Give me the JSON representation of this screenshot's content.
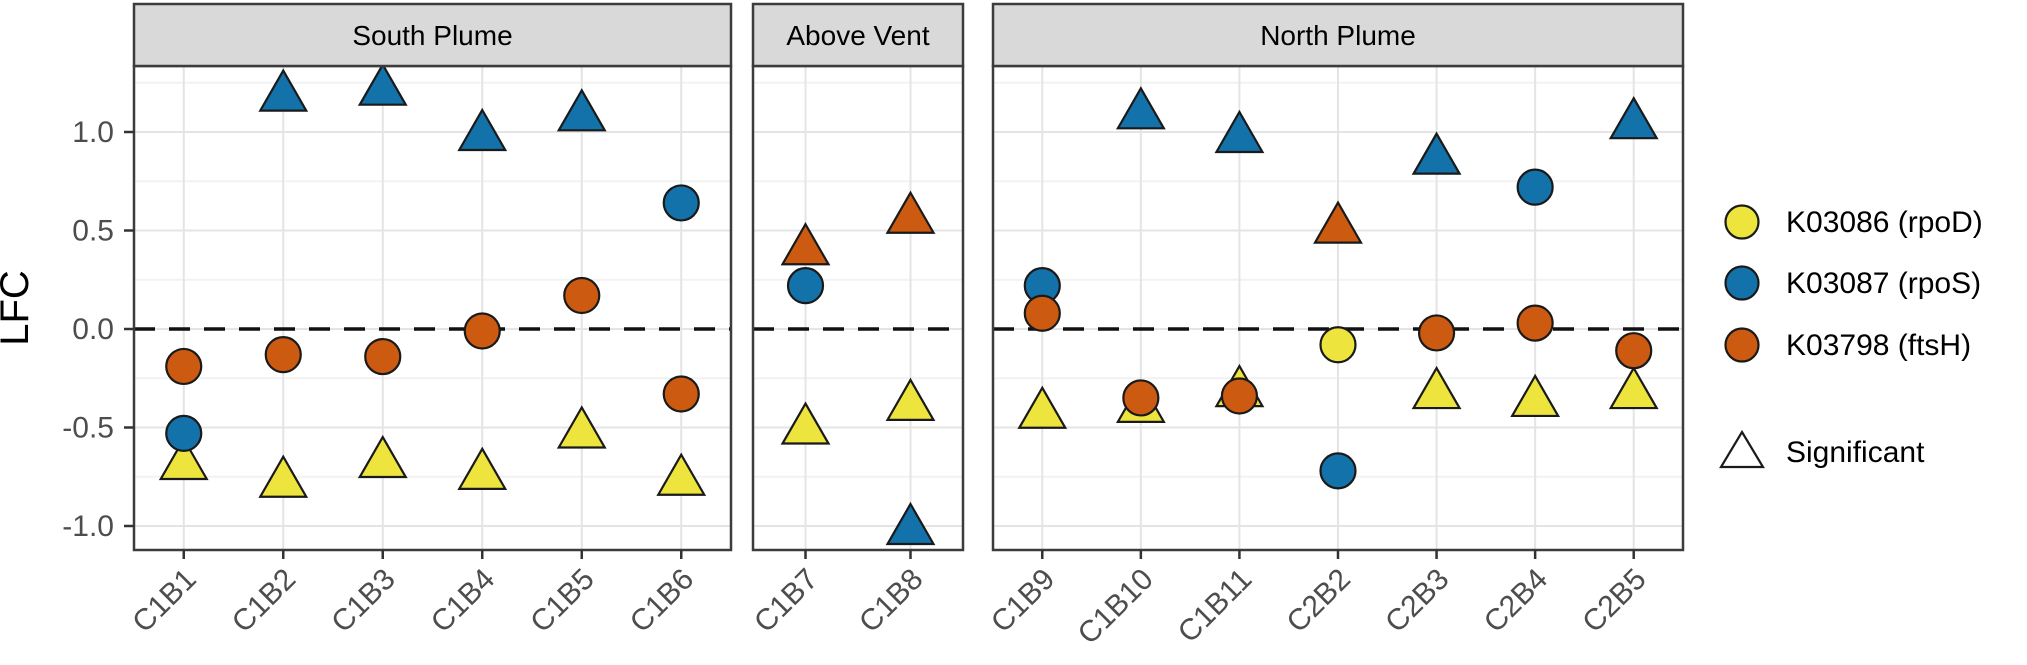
{
  "chart_data": {
    "type": "scatter",
    "title": "",
    "ylabel": "LFC",
    "yticks": [
      1.0,
      0.5,
      0.0,
      -0.5,
      -1.0
    ],
    "ytick_labels": [
      "1.0",
      "0.5",
      "0.0",
      "-0.5",
      "-1.0"
    ],
    "yminor": [
      1.25,
      0.75,
      0.25,
      -0.25,
      -0.75
    ],
    "ylim": [
      -1.12,
      1.33
    ],
    "grid": "on",
    "hline": {
      "value": 0.0,
      "style": "dashed",
      "color": "#111111"
    },
    "facets": [
      {
        "label": "South Plume",
        "categories": [
          "C1B1",
          "C1B2",
          "C1B3",
          "C1B4",
          "C1B5",
          "C1B6"
        ]
      },
      {
        "label": "Above Vent",
        "categories": [
          "C1B7",
          "C1B8"
        ]
      },
      {
        "label": "North Plume",
        "categories": [
          "C1B9",
          "C1B10",
          "C1B11",
          "C2B2",
          "C2B3",
          "C2B4",
          "C2B5"
        ]
      }
    ],
    "series": [
      {
        "key": "rpoD",
        "label": "K03086 (rpoD)",
        "color": "#EDE43D"
      },
      {
        "key": "rpoS",
        "label": "K03087 (rpoS)",
        "color": "#1272A9"
      },
      {
        "key": "ftsH",
        "label": "K03798 (ftsH)",
        "color": "#CC5A11"
      }
    ],
    "shape_legend": {
      "label": "Significant",
      "shape": "triangle"
    },
    "points": [
      {
        "facet": 0,
        "sample": "C1B1",
        "series": "rpoD",
        "lfc": -0.67,
        "significant": true
      },
      {
        "facet": 0,
        "sample": "C1B1",
        "series": "rpoS",
        "lfc": -0.53,
        "significant": false
      },
      {
        "facet": 0,
        "sample": "C1B1",
        "series": "ftsH",
        "lfc": -0.19,
        "significant": false
      },
      {
        "facet": 0,
        "sample": "C1B2",
        "series": "rpoD",
        "lfc": -0.76,
        "significant": true
      },
      {
        "facet": 0,
        "sample": "C1B2",
        "series": "rpoS",
        "lfc": 1.2,
        "significant": true
      },
      {
        "facet": 0,
        "sample": "C1B2",
        "series": "ftsH",
        "lfc": -0.13,
        "significant": false
      },
      {
        "facet": 0,
        "sample": "C1B3",
        "series": "rpoD",
        "lfc": -0.66,
        "significant": true
      },
      {
        "facet": 0,
        "sample": "C1B3",
        "series": "rpoS",
        "lfc": 1.23,
        "significant": true
      },
      {
        "facet": 0,
        "sample": "C1B3",
        "series": "ftsH",
        "lfc": -0.14,
        "significant": false
      },
      {
        "facet": 0,
        "sample": "C1B4",
        "series": "rpoD",
        "lfc": -0.72,
        "significant": true
      },
      {
        "facet": 0,
        "sample": "C1B4",
        "series": "rpoS",
        "lfc": 1.0,
        "significant": true
      },
      {
        "facet": 0,
        "sample": "C1B4",
        "series": "ftsH",
        "lfc": -0.01,
        "significant": false
      },
      {
        "facet": 0,
        "sample": "C1B5",
        "series": "rpoD",
        "lfc": -0.51,
        "significant": true
      },
      {
        "facet": 0,
        "sample": "C1B5",
        "series": "rpoS",
        "lfc": 1.1,
        "significant": true
      },
      {
        "facet": 0,
        "sample": "C1B5",
        "series": "ftsH",
        "lfc": 0.17,
        "significant": false
      },
      {
        "facet": 0,
        "sample": "C1B6",
        "series": "rpoD",
        "lfc": -0.75,
        "significant": true
      },
      {
        "facet": 0,
        "sample": "C1B6",
        "series": "rpoS",
        "lfc": 0.64,
        "significant": false
      },
      {
        "facet": 0,
        "sample": "C1B6",
        "series": "ftsH",
        "lfc": -0.33,
        "significant": false
      },
      {
        "facet": 1,
        "sample": "C1B7",
        "series": "rpoD",
        "lfc": -0.49,
        "significant": true
      },
      {
        "facet": 1,
        "sample": "C1B7",
        "series": "rpoS",
        "lfc": 0.22,
        "significant": false
      },
      {
        "facet": 1,
        "sample": "C1B7",
        "series": "ftsH",
        "lfc": 0.42,
        "significant": true
      },
      {
        "facet": 1,
        "sample": "C1B8",
        "series": "rpoD",
        "lfc": -0.37,
        "significant": true
      },
      {
        "facet": 1,
        "sample": "C1B8",
        "series": "rpoS",
        "lfc": -1.0,
        "significant": true
      },
      {
        "facet": 1,
        "sample": "C1B8",
        "series": "ftsH",
        "lfc": 0.58,
        "significant": true
      },
      {
        "facet": 2,
        "sample": "C1B9",
        "series": "rpoD",
        "lfc": -0.41,
        "significant": true
      },
      {
        "facet": 2,
        "sample": "C1B9",
        "series": "rpoS",
        "lfc": 0.22,
        "significant": false
      },
      {
        "facet": 2,
        "sample": "C1B9",
        "series": "ftsH",
        "lfc": 0.08,
        "significant": false
      },
      {
        "facet": 2,
        "sample": "C1B10",
        "series": "rpoD",
        "lfc": -0.38,
        "significant": true
      },
      {
        "facet": 2,
        "sample": "C1B10",
        "series": "rpoS",
        "lfc": 1.11,
        "significant": true
      },
      {
        "facet": 2,
        "sample": "C1B10",
        "series": "ftsH",
        "lfc": -0.35,
        "significant": false
      },
      {
        "facet": 2,
        "sample": "C1B11",
        "series": "rpoD",
        "lfc": -0.3,
        "significant": true
      },
      {
        "facet": 2,
        "sample": "C1B11",
        "series": "rpoS",
        "lfc": 0.99,
        "significant": true
      },
      {
        "facet": 2,
        "sample": "C1B11",
        "series": "ftsH",
        "lfc": -0.34,
        "significant": false
      },
      {
        "facet": 2,
        "sample": "C2B2",
        "series": "rpoD",
        "lfc": -0.08,
        "significant": false
      },
      {
        "facet": 2,
        "sample": "C2B2",
        "series": "rpoS",
        "lfc": -0.72,
        "significant": false
      },
      {
        "facet": 2,
        "sample": "C2B2",
        "series": "ftsH",
        "lfc": 0.53,
        "significant": true
      },
      {
        "facet": 2,
        "sample": "C2B3",
        "series": "rpoD",
        "lfc": -0.31,
        "significant": true
      },
      {
        "facet": 2,
        "sample": "C2B3",
        "series": "rpoS",
        "lfc": 0.88,
        "significant": true
      },
      {
        "facet": 2,
        "sample": "C2B3",
        "series": "ftsH",
        "lfc": -0.02,
        "significant": false
      },
      {
        "facet": 2,
        "sample": "C2B4",
        "series": "rpoD",
        "lfc": -0.35,
        "significant": true
      },
      {
        "facet": 2,
        "sample": "C2B4",
        "series": "rpoS",
        "lfc": 0.72,
        "significant": false
      },
      {
        "facet": 2,
        "sample": "C2B4",
        "series": "ftsH",
        "lfc": 0.03,
        "significant": false
      },
      {
        "facet": 2,
        "sample": "C2B5",
        "series": "rpoD",
        "lfc": -0.31,
        "significant": true
      },
      {
        "facet": 2,
        "sample": "C2B5",
        "series": "rpoS",
        "lfc": 1.06,
        "significant": true
      },
      {
        "facet": 2,
        "sample": "C2B5",
        "series": "ftsH",
        "lfc": -0.11,
        "significant": false
      }
    ]
  }
}
